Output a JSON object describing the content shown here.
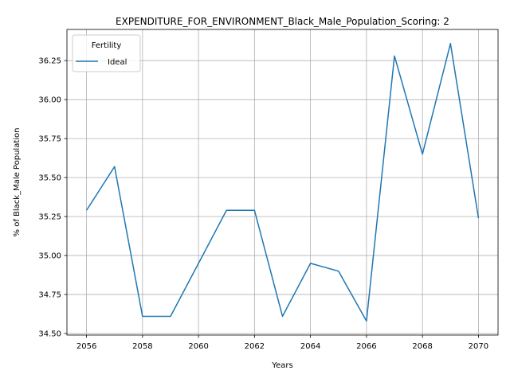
{
  "chart_data": {
    "type": "line",
    "title": "EXPENDITURE_FOR_ENVIRONMENT_Black_Male_Population_Scoring: 2",
    "xlabel": "Years",
    "ylabel": "% of Black_Male Population",
    "xlim": [
      2055.3,
      2070.7
    ],
    "ylim": [
      34.49,
      36.45
    ],
    "x_ticks": [
      2056,
      2058,
      2060,
      2062,
      2064,
      2066,
      2068,
      2070
    ],
    "y_ticks": [
      34.5,
      34.75,
      35.0,
      35.25,
      35.5,
      35.75,
      36.0,
      36.25
    ],
    "y_tick_labels": [
      "34.50",
      "34.75",
      "35.00",
      "35.25",
      "35.50",
      "35.75",
      "36.00",
      "36.25"
    ],
    "grid": true,
    "legend": {
      "title": "Fertility",
      "placement": "top-left"
    },
    "series": [
      {
        "name": "Ideal",
        "color": "#1f77b4",
        "x": [
          2056,
          2057,
          2058,
          2059,
          2060,
          2061,
          2062,
          2063,
          2064,
          2065,
          2066,
          2067,
          2068,
          2069,
          2070
        ],
        "values": [
          35.29,
          35.57,
          34.61,
          34.61,
          34.95,
          35.29,
          35.29,
          34.61,
          34.95,
          34.9,
          34.58,
          36.28,
          35.65,
          36.36,
          35.24
        ]
      }
    ]
  }
}
